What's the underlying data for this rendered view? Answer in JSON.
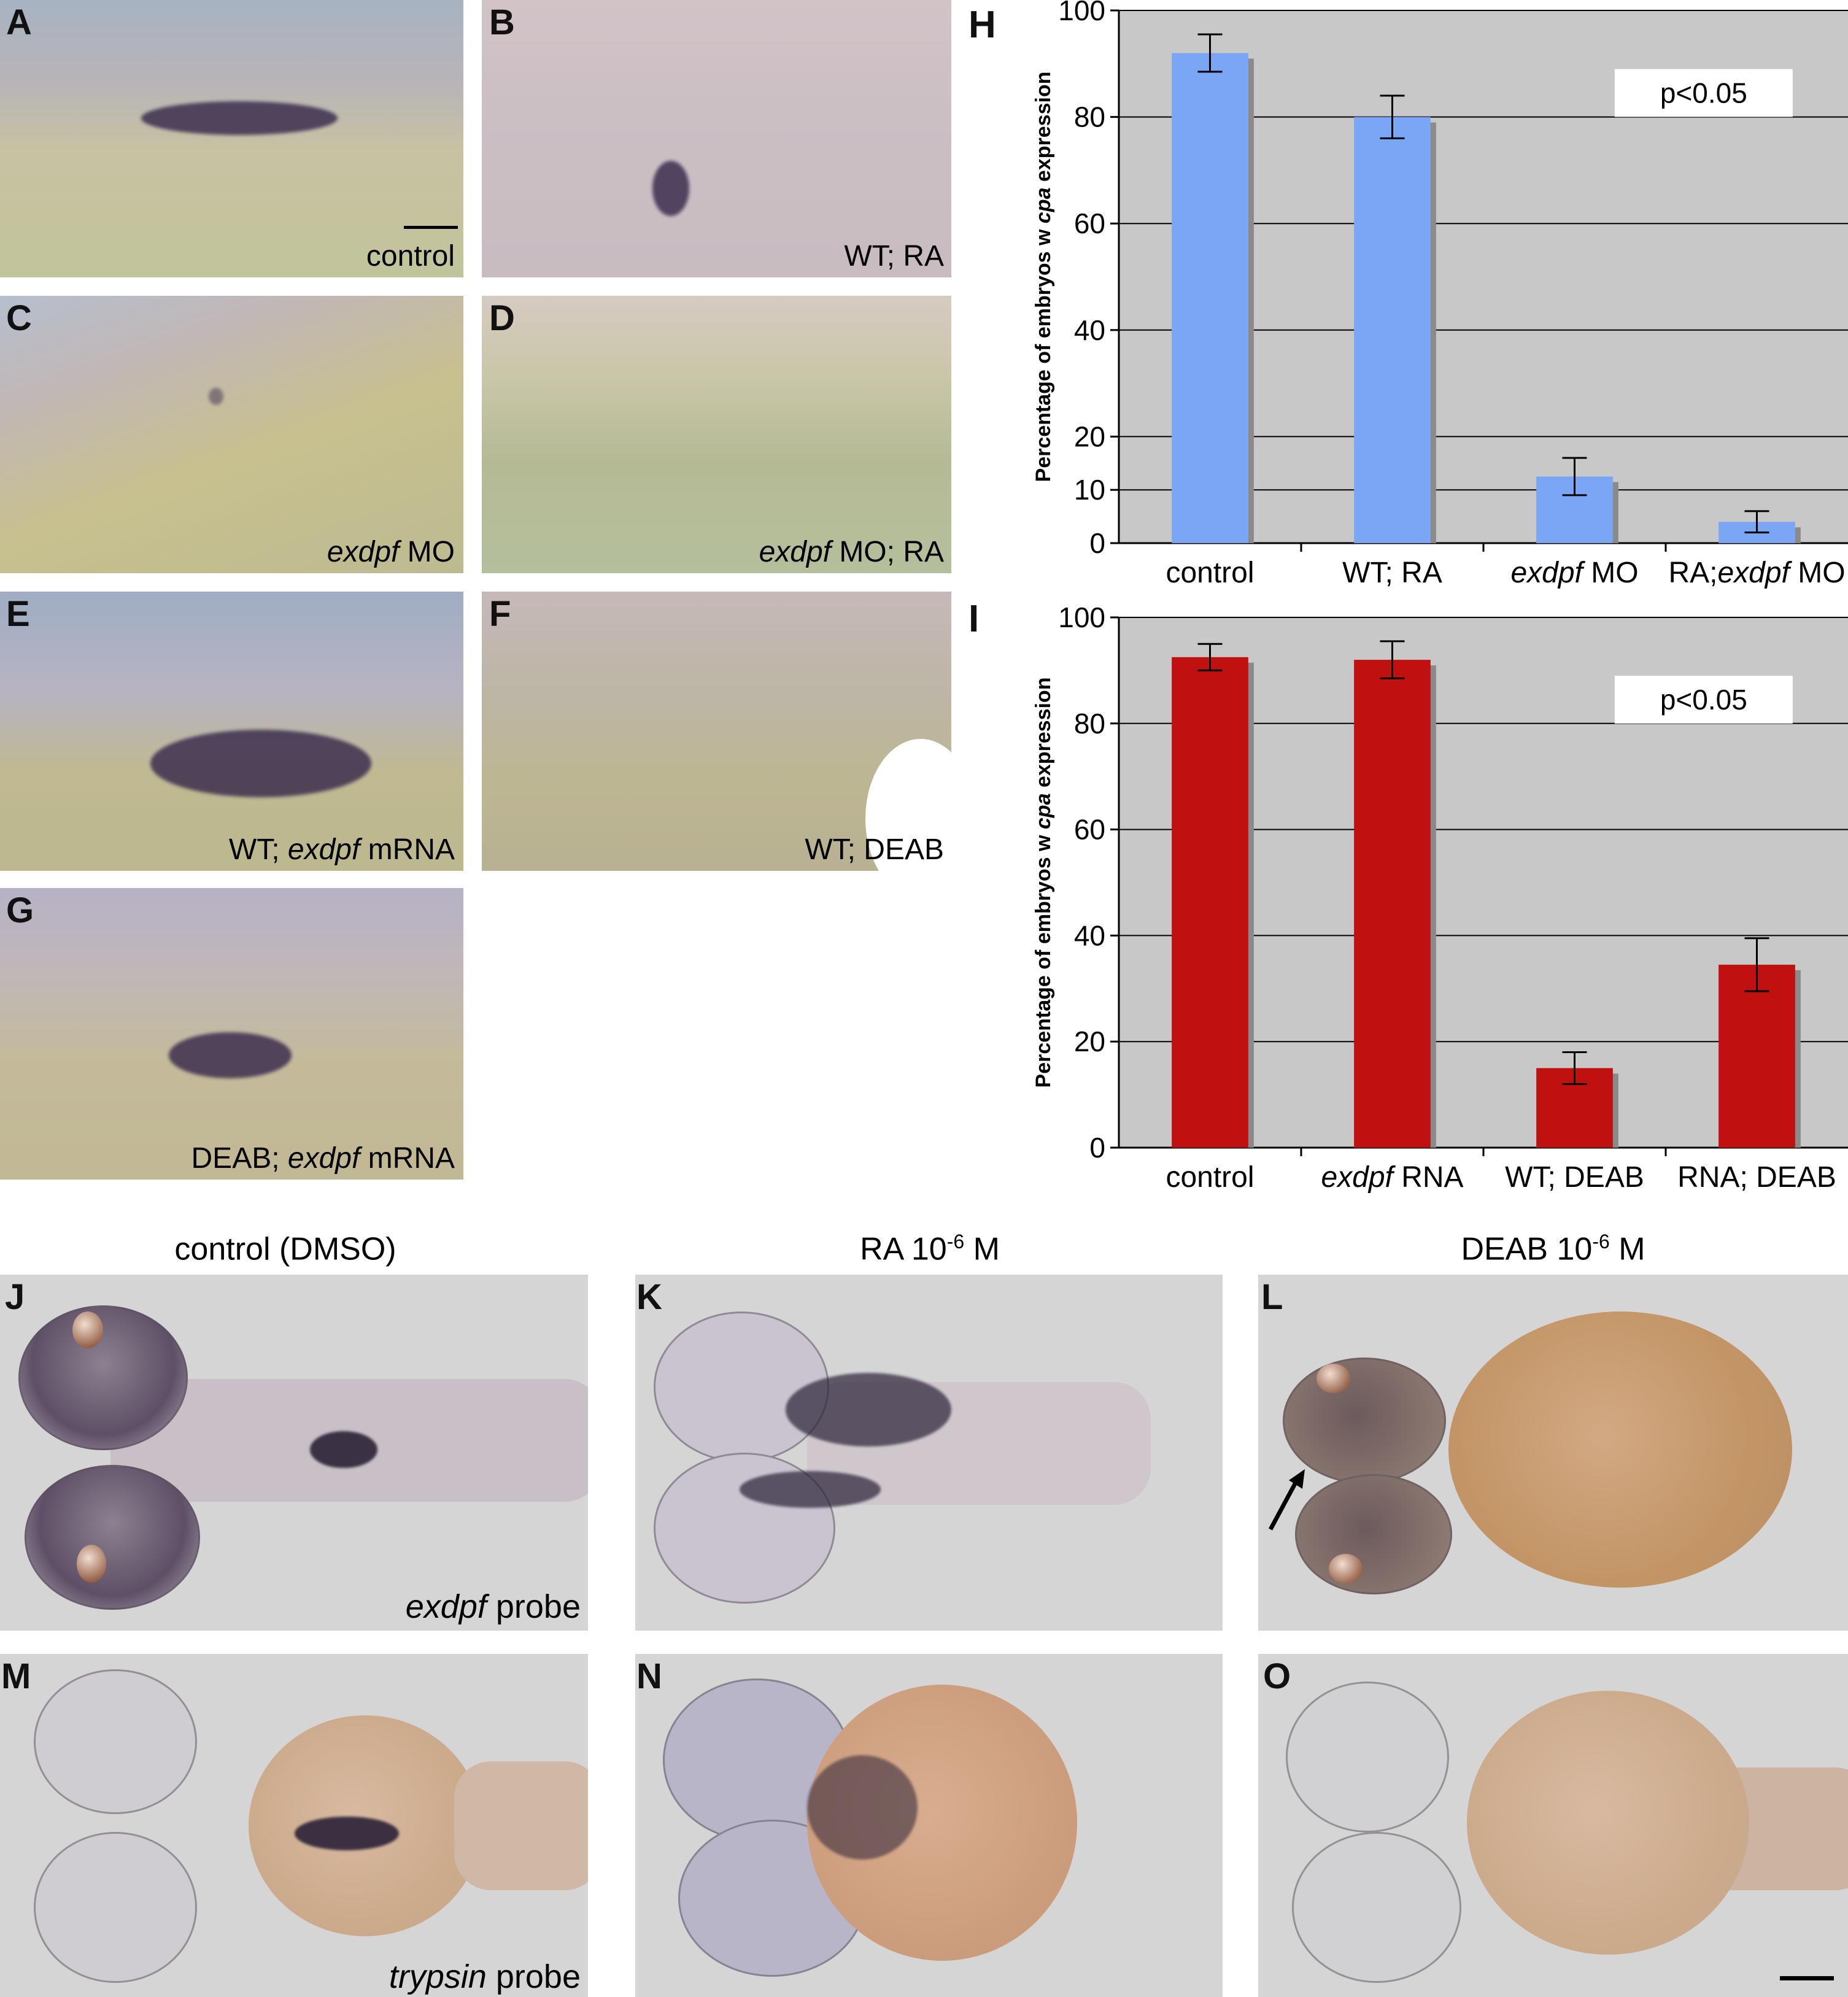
{
  "lateral_panels": [
    {
      "letter": "A",
      "caption_pre": "",
      "caption_it": "",
      "caption_post": "control"
    },
    {
      "letter": "B",
      "caption_pre": "WT; RA",
      "caption_it": "",
      "caption_post": ""
    },
    {
      "letter": "C",
      "caption_pre": "",
      "caption_it": "exdpf",
      "caption_post": " MO"
    },
    {
      "letter": "D",
      "caption_pre": "",
      "caption_it": "exdpf",
      "caption_post": " MO; RA"
    },
    {
      "letter": "E",
      "caption_pre": "WT; ",
      "caption_it": "exdpf",
      "caption_post": " mRNA"
    },
    {
      "letter": "F",
      "caption_pre": "WT; DEAB",
      "caption_it": "",
      "caption_post": ""
    },
    {
      "letter": "G",
      "caption_pre": "DEAB; ",
      "caption_it": "exdpf",
      "caption_post": " mRNA"
    }
  ],
  "chart_letters": {
    "H": "H",
    "I": "I"
  },
  "chart_data": [
    {
      "type": "bar",
      "ylabel_pre": "Percentage of embryos w ",
      "ylabel_it": "cpa",
      "ylabel_post": " expression",
      "ylim": [
        0,
        100
      ],
      "yticks": [
        0,
        10,
        20,
        40,
        60,
        80,
        100
      ],
      "categories": [
        {
          "pre": "",
          "it": "",
          "post": "control"
        },
        {
          "pre": "WT; RA",
          "it": "",
          "post": ""
        },
        {
          "pre": "",
          "it": "exdpf",
          "post": " MO"
        },
        {
          "pre": "RA;",
          "it": "exdpf",
          "post": " MO"
        }
      ],
      "values": [
        92,
        80,
        12.5,
        4
      ],
      "errors": [
        3.5,
        4,
        3.5,
        2
      ],
      "bar_color": "#7aa6f5",
      "annotation": "p<0.05",
      "grid": true
    },
    {
      "type": "bar",
      "ylabel_pre": "Percentage of embryos w ",
      "ylabel_it": "cpa",
      "ylabel_post": " expression",
      "ylim": [
        0,
        100
      ],
      "yticks": [
        0,
        20,
        40,
        60,
        80,
        100
      ],
      "categories": [
        {
          "pre": "",
          "it": "",
          "post": "control"
        },
        {
          "pre": "",
          "it": "exdpf",
          "post": " RNA"
        },
        {
          "pre": "WT; DEAB",
          "it": "",
          "post": ""
        },
        {
          "pre": "RNA; DEAB",
          "it": "",
          "post": ""
        }
      ],
      "values": [
        92.5,
        92,
        15,
        34.5
      ],
      "errors": [
        2.5,
        3.5,
        3,
        5
      ],
      "bar_color": "#c0100f",
      "annotation": "p<0.05",
      "grid": true
    }
  ],
  "column_heads": [
    {
      "text": "control (DMSO)",
      "sup": "",
      "suffix": ""
    },
    {
      "text": "RA 10",
      "sup": "-6",
      "suffix": " M"
    },
    {
      "text": "DEAB 10",
      "sup": "-6",
      "suffix": " M"
    }
  ],
  "dorsal_panels": [
    {
      "letter": "J",
      "caption_it": "exdpf",
      "caption_post": " probe"
    },
    {
      "letter": "K",
      "caption_it": "",
      "caption_post": ""
    },
    {
      "letter": "L",
      "caption_it": "",
      "caption_post": ""
    },
    {
      "letter": "M",
      "caption_it": "trypsin",
      "caption_post": " probe"
    },
    {
      "letter": "N",
      "caption_it": "",
      "caption_post": ""
    },
    {
      "letter": "O",
      "caption_it": "",
      "caption_post": ""
    }
  ]
}
